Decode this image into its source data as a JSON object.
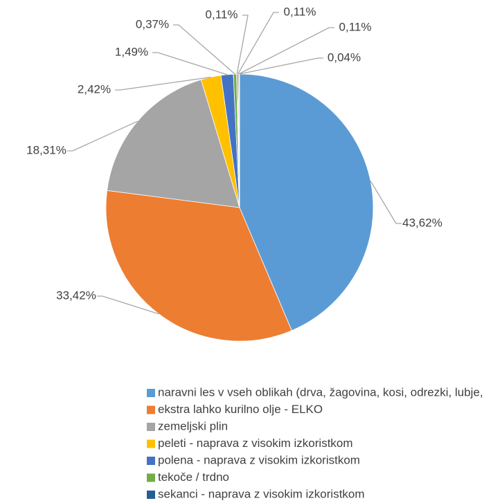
{
  "chart_data": {
    "type": "pie",
    "categories": [
      "naravni les v vseh oblikah (drva, žagovina, kosi, odrezki, lubje, storži)",
      "ekstra lahko kurilno olje - ELKO",
      "zemeljski plin",
      "peleti - naprava z visokim izkoristkom",
      "polena - naprava z visokim izkoristkom",
      "tekoče / trdno",
      "sekanci  - naprava z visokim izkoristkom",
      null,
      null,
      null
    ],
    "values": [
      43.62,
      33.42,
      18.31,
      2.42,
      1.49,
      0.37,
      0.11,
      0.11,
      0.11,
      0.04
    ],
    "value_labels": [
      "43,62%",
      "33,42%",
      "18,31%",
      "2,42%",
      "1,49%",
      "0,37%",
      "0,11%",
      "0,11%",
      "0,11%",
      "0,04%"
    ],
    "colors": [
      "#5b9bd5",
      "#ed7d31",
      "#a5a5a5",
      "#ffc000",
      "#4472c4",
      "#70ad47",
      "#255e91",
      "#9e480e",
      "#636363",
      "#997300"
    ],
    "legend": "bottom"
  }
}
